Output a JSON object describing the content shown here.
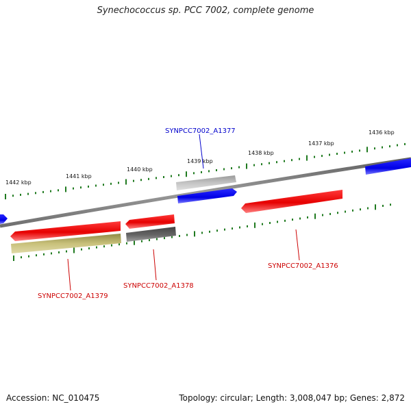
{
  "title": "Synechococcus sp. PCC 7002, complete genome",
  "footer": {
    "accession": "Accession: NC_010475",
    "summary": "Topology: circular; Length: 3,008,047 bp; Genes: 2,872"
  },
  "ruler_labels": [
    "1442 kbp",
    "1441 kbp",
    "1440 kbp",
    "1439 kbp",
    "1438 kbp",
    "1437 kbp",
    "1436 kbp"
  ],
  "gene_labels": [
    {
      "id": "gene-label-a1377",
      "text": "SYNPCC7002_A1377",
      "color": "#0000cc"
    },
    {
      "id": "gene-label-a1376",
      "text": "SYNPCC7002_A1376",
      "color": "#cc0000"
    },
    {
      "id": "gene-label-a1378",
      "text": "SYNPCC7002_A1378",
      "color": "#cc0000"
    },
    {
      "id": "gene-label-a1379",
      "text": "SYNPCC7002_A1379",
      "color": "#cc0000"
    }
  ],
  "colors": {
    "backbone": "#808080",
    "forward_gene": "#0000ff",
    "reverse_gene": "#ff0000",
    "feature_light_gray": "#b3b3b3",
    "feature_dark_gray": "#555555",
    "feature_olive": "#bdb76b",
    "tick": "#1f7a1f"
  }
}
